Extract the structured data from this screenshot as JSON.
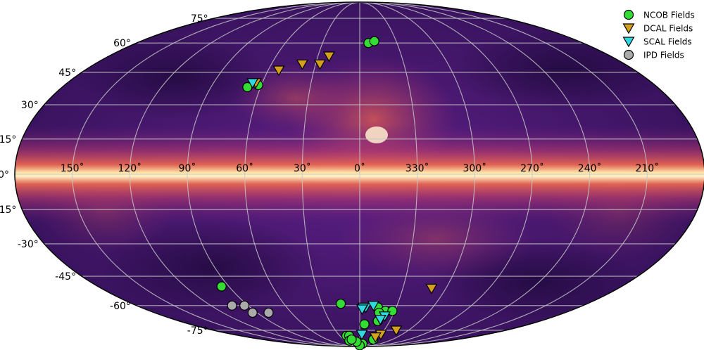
{
  "chart_data": {
    "type": "scatter",
    "projection": "mollweide",
    "coordinate_frame": "galactic",
    "background": "dust-emission all-sky map (magma colormap)",
    "xlabel": "",
    "ylabel": "",
    "lon_ticks": [
      "150˚",
      "120˚",
      "90˚",
      "60˚",
      "30˚",
      "0˚",
      "330˚",
      "300˚",
      "270˚",
      "240˚",
      "210˚"
    ],
    "lon_tick_values": [
      150,
      120,
      90,
      60,
      30,
      0,
      330,
      300,
      270,
      240,
      210
    ],
    "lat_ticks": [
      "75°",
      "60°",
      "45°",
      "30°",
      "15°",
      "0°",
      "-15°",
      "-30°",
      "-45°",
      "-60°",
      "-75°"
    ],
    "lat_tick_values": [
      75,
      60,
      45,
      30,
      15,
      0,
      -15,
      -30,
      -45,
      -60,
      -75
    ],
    "lon_range": [
      180,
      -180
    ],
    "lat_range": [
      -90,
      90
    ],
    "grid": true,
    "legend_position": "top-right",
    "series": [
      {
        "name": "NCOB Fields",
        "marker": "circle",
        "color": "#33dd33",
        "points": [
          [
            -7,
            60
          ],
          [
            -12,
            61
          ],
          [
            68,
            38
          ],
          [
            62,
            39
          ],
          [
            95,
            -50
          ],
          [
            15,
            -59
          ],
          [
            -15,
            -61
          ],
          [
            -22,
            -63
          ],
          [
            -28,
            -63
          ],
          [
            -17,
            -64
          ],
          [
            -18,
            -69
          ],
          [
            -5,
            -71
          ],
          [
            -25,
            -82
          ],
          [
            -8,
            -86
          ],
          [
            0,
            -88
          ],
          [
            7,
            -84
          ],
          [
            20,
            -79
          ],
          [
            16,
            -79
          ],
          [
            21,
            -83
          ],
          [
            15,
            -82
          ]
        ]
      },
      {
        "name": "DCAL Fields",
        "marker": "triangle-down",
        "color": "#d4a020",
        "points": [
          [
            64,
            40
          ],
          [
            53,
            46
          ],
          [
            39,
            49
          ],
          [
            27,
            49
          ],
          [
            22,
            53
          ],
          [
            -50,
            -51
          ],
          [
            -45,
            -75
          ],
          [
            -30,
            -78
          ],
          [
            -25,
            -80
          ]
        ]
      },
      {
        "name": "SCAL Fields",
        "marker": "triangle-down",
        "color": "#30d8e0",
        "points": [
          [
            66,
            40
          ],
          [
            -5,
            -61
          ],
          [
            -3,
            -61
          ],
          [
            -2,
            -62
          ],
          [
            -11,
            -60
          ],
          [
            -20,
            -68
          ],
          [
            -23,
            -66
          ],
          [
            -20,
            -68
          ],
          [
            -3,
            -78
          ]
        ]
      },
      {
        "name": "IPD Fields",
        "marker": "circle",
        "color": "#aaaaaa",
        "points": [
          [
            103,
            -60
          ],
          [
            93,
            -60
          ],
          [
            94,
            -64
          ],
          [
            80,
            -64
          ]
        ]
      }
    ]
  }
}
